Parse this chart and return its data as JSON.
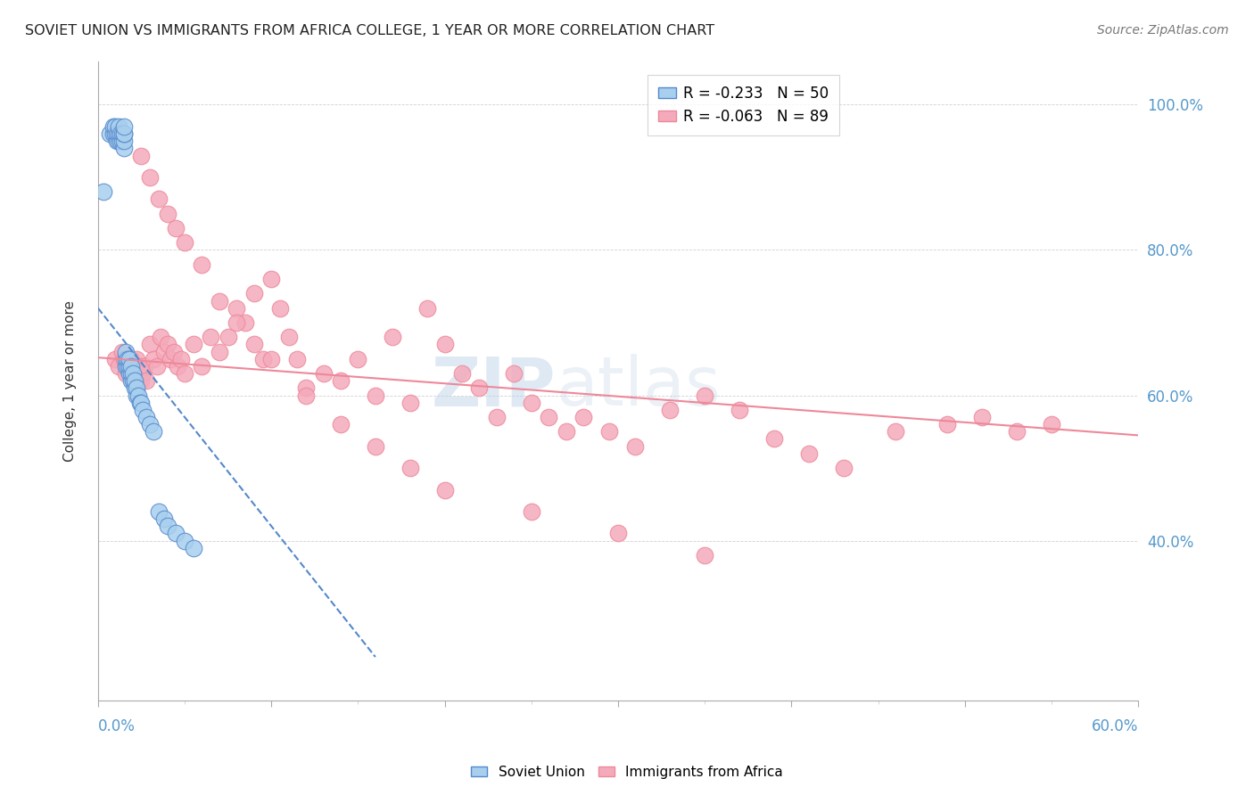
{
  "title": "SOVIET UNION VS IMMIGRANTS FROM AFRICA COLLEGE, 1 YEAR OR MORE CORRELATION CHART",
  "source": "Source: ZipAtlas.com",
  "ylabel": "College, 1 year or more",
  "xlim": [
    0.0,
    0.6
  ],
  "ylim": [
    0.18,
    1.06
  ],
  "legend_r1": "-0.233",
  "legend_n1": "50",
  "legend_r2": "-0.063",
  "legend_n2": "89",
  "color_soviet": "#A8CFEE",
  "color_africa": "#F4AABB",
  "color_soviet_line": "#5588CC",
  "color_africa_line": "#EE8899",
  "watermark_zip": "ZIP",
  "watermark_atlas": "atlas",
  "soviet_x": [
    0.003,
    0.007,
    0.009,
    0.009,
    0.01,
    0.01,
    0.011,
    0.011,
    0.012,
    0.012,
    0.012,
    0.013,
    0.013,
    0.014,
    0.014,
    0.015,
    0.015,
    0.015,
    0.015,
    0.015,
    0.016,
    0.016,
    0.016,
    0.017,
    0.017,
    0.018,
    0.018,
    0.018,
    0.019,
    0.019,
    0.019,
    0.02,
    0.02,
    0.021,
    0.021,
    0.022,
    0.022,
    0.023,
    0.024,
    0.025,
    0.026,
    0.028,
    0.03,
    0.032,
    0.035,
    0.038,
    0.04,
    0.045,
    0.05,
    0.055
  ],
  "soviet_y": [
    0.88,
    0.96,
    0.96,
    0.97,
    0.96,
    0.97,
    0.95,
    0.96,
    0.95,
    0.96,
    0.97,
    0.95,
    0.96,
    0.95,
    0.96,
    0.94,
    0.95,
    0.96,
    0.96,
    0.97,
    0.64,
    0.65,
    0.66,
    0.64,
    0.65,
    0.63,
    0.64,
    0.65,
    0.62,
    0.63,
    0.64,
    0.62,
    0.63,
    0.61,
    0.62,
    0.6,
    0.61,
    0.6,
    0.59,
    0.59,
    0.58,
    0.57,
    0.56,
    0.55,
    0.44,
    0.43,
    0.42,
    0.41,
    0.4,
    0.39
  ],
  "africa_x": [
    0.01,
    0.012,
    0.014,
    0.015,
    0.016,
    0.018,
    0.019,
    0.02,
    0.021,
    0.022,
    0.023,
    0.024,
    0.025,
    0.026,
    0.027,
    0.028,
    0.03,
    0.032,
    0.034,
    0.036,
    0.038,
    0.04,
    0.042,
    0.044,
    0.046,
    0.048,
    0.05,
    0.055,
    0.06,
    0.065,
    0.07,
    0.075,
    0.08,
    0.085,
    0.09,
    0.095,
    0.1,
    0.105,
    0.11,
    0.115,
    0.12,
    0.13,
    0.14,
    0.15,
    0.16,
    0.17,
    0.18,
    0.19,
    0.2,
    0.21,
    0.22,
    0.23,
    0.24,
    0.25,
    0.26,
    0.27,
    0.28,
    0.295,
    0.31,
    0.33,
    0.35,
    0.37,
    0.39,
    0.41,
    0.43,
    0.46,
    0.49,
    0.51,
    0.53,
    0.55,
    0.025,
    0.03,
    0.035,
    0.04,
    0.045,
    0.05,
    0.06,
    0.07,
    0.08,
    0.09,
    0.1,
    0.12,
    0.14,
    0.16,
    0.18,
    0.2,
    0.25,
    0.3,
    0.35
  ],
  "africa_y": [
    0.65,
    0.64,
    0.66,
    0.65,
    0.63,
    0.64,
    0.65,
    0.63,
    0.64,
    0.65,
    0.63,
    0.64,
    0.62,
    0.63,
    0.64,
    0.62,
    0.67,
    0.65,
    0.64,
    0.68,
    0.66,
    0.67,
    0.65,
    0.66,
    0.64,
    0.65,
    0.63,
    0.67,
    0.64,
    0.68,
    0.66,
    0.68,
    0.72,
    0.7,
    0.74,
    0.65,
    0.76,
    0.72,
    0.68,
    0.65,
    0.61,
    0.63,
    0.62,
    0.65,
    0.6,
    0.68,
    0.59,
    0.72,
    0.67,
    0.63,
    0.61,
    0.57,
    0.63,
    0.59,
    0.57,
    0.55,
    0.57,
    0.55,
    0.53,
    0.58,
    0.6,
    0.58,
    0.54,
    0.52,
    0.5,
    0.55,
    0.56,
    0.57,
    0.55,
    0.56,
    0.93,
    0.9,
    0.87,
    0.85,
    0.83,
    0.81,
    0.78,
    0.73,
    0.7,
    0.67,
    0.65,
    0.6,
    0.56,
    0.53,
    0.5,
    0.47,
    0.44,
    0.41,
    0.38
  ],
  "africa_line_x": [
    0.0,
    0.6
  ],
  "africa_line_y": [
    0.652,
    0.545
  ],
  "soviet_line_x": [
    0.0,
    0.16
  ],
  "soviet_line_y": [
    0.72,
    0.24
  ]
}
